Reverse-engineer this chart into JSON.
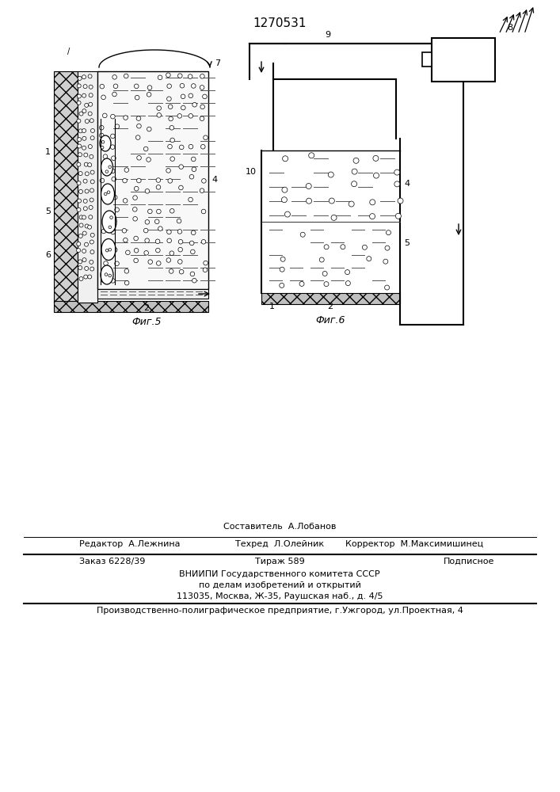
{
  "title": "1270531",
  "bg_color": "#ffffff",
  "fig5_caption": "Фиг.5",
  "fig6_caption": "Фиг.6",
  "footer_line0": "Составитель  А.Лобанов",
  "footer_line1_left": "Редактор  А.Лежнина",
  "footer_line1_mid": "Техред  Л.Олейник",
  "footer_line1_right": "Корректор  М.Максимишинец",
  "footer_line2_left": "Заказ 6228/39",
  "footer_line2_mid": "Тираж 589",
  "footer_line2_right": "Подписное",
  "footer_line3": "ВНИИПИ Государственного комитета СССР",
  "footer_line4": "по делам изобретений и открытий",
  "footer_line5": "113035, Москва, Ж-35, Раушская наб., д. 4/5",
  "footer_line6": "Производственно-полиграфическое предприятие, г.Ужгород, ул.Проектная, 4"
}
